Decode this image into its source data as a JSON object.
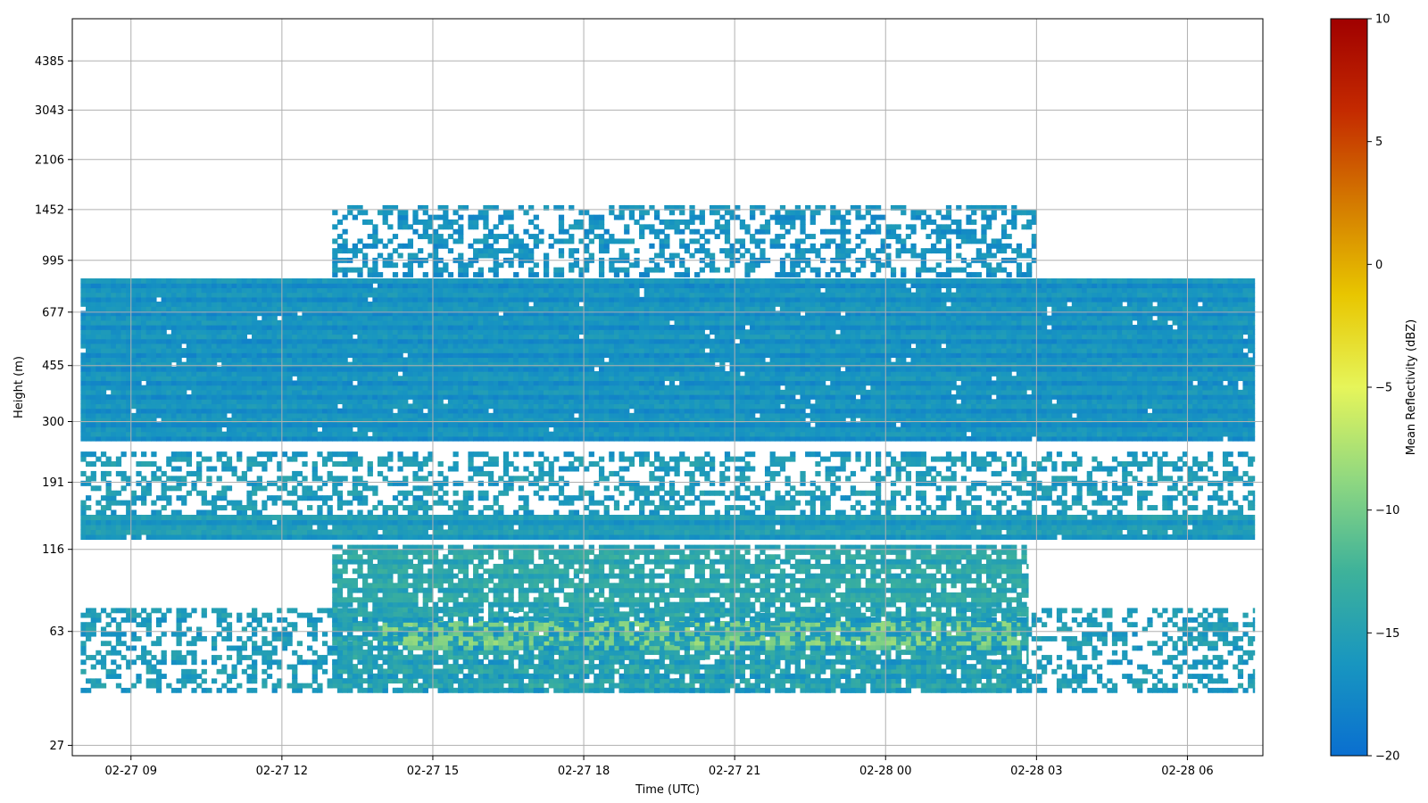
{
  "chart_data": {
    "type": "heatmap",
    "title": "",
    "xlabel": "Time (UTC)",
    "ylabel": "Height (m)",
    "x_ticks": [
      "02-27 09",
      "02-27 12",
      "02-27 15",
      "02-27 18",
      "02-27 21",
      "02-28 00",
      "02-28 03",
      "02-28 06"
    ],
    "x_range": [
      "02-27 07:50",
      "02-28 07:30"
    ],
    "y_ticks": [
      27,
      63,
      116,
      191,
      300,
      455,
      677,
      995,
      1452,
      2106,
      3043,
      4385
    ],
    "y_scale": "log",
    "y_range": [
      25,
      6000
    ],
    "grid": true,
    "colorbar": {
      "label": "Mean Reflectivity (dBZ)",
      "range": [
        -20,
        10
      ],
      "ticks": [
        -20,
        -15,
        -10,
        -5,
        0,
        5,
        10
      ],
      "colors": [
        "#0a6fd0",
        "#1896c0",
        "#3eb29a",
        "#90d880",
        "#e6f55a",
        "#e8c600",
        "#d47a00",
        "#c42a00",
        "#a00000"
      ]
    },
    "layers": [
      {
        "name": "",
        "height_range": [
          260,
          870
        ],
        "time_range": [
          "02-27 08:00",
          "02-28 07:20"
        ],
        "coverage": "continuous",
        "mean_dbz": -16.5
      },
      {
        "name": "",
        "height_range": [
          880,
          1500
        ],
        "time_range": [
          "02-27 13:00",
          "02-28 03:00"
        ],
        "coverage": "sparse",
        "mean_dbz": -16.5
      },
      {
        "name": "",
        "height_range": [
          125,
          150
        ],
        "time_range": [
          "02-27 08:00",
          "02-28 07:20"
        ],
        "coverage": "continuous",
        "mean_dbz": -15.5
      },
      {
        "name": "",
        "height_range": [
          150,
          240
        ],
        "time_range": [
          "02-27 08:00",
          "02-28 07:20"
        ],
        "coverage": "sparse",
        "mean_dbz": -15.5
      },
      {
        "name": "",
        "height_range": [
          40,
          120
        ],
        "time_range": [
          "02-27 13:00",
          "02-28 02:50"
        ],
        "coverage": "dense",
        "mean_dbz": -14
      },
      {
        "name": "",
        "height_range": [
          55,
          68
        ],
        "time_range": [
          "02-27 14:00",
          "02-28 02:40"
        ],
        "coverage": "dense",
        "mean_dbz": -9.5
      },
      {
        "name": "",
        "height_range": [
          40,
          75
        ],
        "time_range": [
          "02-27 08:00",
          "02-28 07:20"
        ],
        "coverage": "sparse",
        "mean_dbz": -15.5
      }
    ]
  }
}
